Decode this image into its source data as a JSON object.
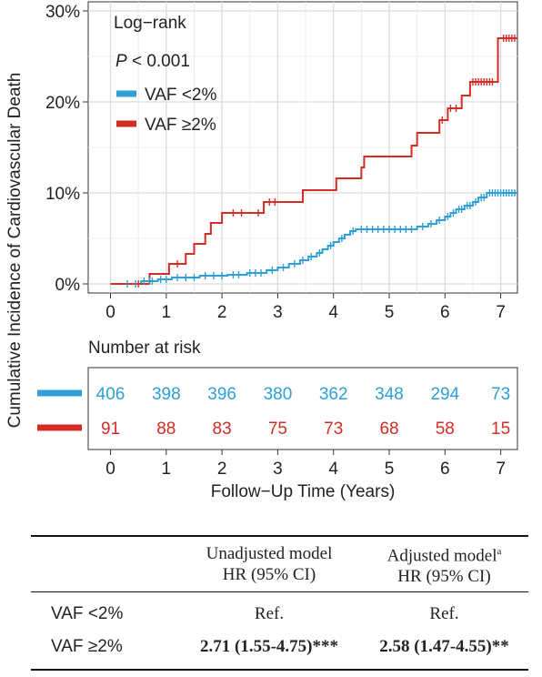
{
  "chart_data": {
    "type": "line",
    "subtype": "cumulative-incidence",
    "ylabel": "Cumulative Incidence of Cardiovascular Death",
    "xlabel": "Follow−Up Time (Years)",
    "x_ticks": [
      0,
      1,
      2,
      3,
      4,
      5,
      6,
      7
    ],
    "y_ticks": [
      0,
      10,
      20,
      30
    ],
    "y_tick_labels": [
      "0%",
      "10%",
      "20%",
      "30%"
    ],
    "xlim": [
      -0.4,
      7.3
    ],
    "ylim": [
      -1,
      31
    ],
    "grid": true,
    "legend": {
      "placement": "top-left",
      "test_label": "Log−rank",
      "p_symbol": "P",
      "p_rest": " < 0.001"
    },
    "series": [
      {
        "name": "VAF <2%",
        "color": "#2f9fd6",
        "steps": [
          [
            0,
            0
          ],
          [
            0.55,
            0.3
          ],
          [
            0.85,
            0.5
          ],
          [
            1.1,
            0.7
          ],
          [
            1.6,
            0.9
          ],
          [
            2.1,
            1.0
          ],
          [
            2.45,
            1.2
          ],
          [
            2.8,
            1.5
          ],
          [
            3.0,
            1.8
          ],
          [
            3.2,
            2.2
          ],
          [
            3.4,
            2.6
          ],
          [
            3.55,
            3.0
          ],
          [
            3.7,
            3.4
          ],
          [
            3.8,
            3.8
          ],
          [
            3.9,
            4.2
          ],
          [
            4.0,
            4.6
          ],
          [
            4.1,
            5.0
          ],
          [
            4.2,
            5.4
          ],
          [
            4.3,
            5.8
          ],
          [
            4.4,
            6.0
          ],
          [
            5.5,
            6.3
          ],
          [
            5.7,
            6.6
          ],
          [
            5.85,
            7.0
          ],
          [
            6.0,
            7.4
          ],
          [
            6.1,
            7.8
          ],
          [
            6.2,
            8.2
          ],
          [
            6.35,
            8.6
          ],
          [
            6.5,
            9.0
          ],
          [
            6.6,
            9.5
          ],
          [
            6.75,
            10.0
          ],
          [
            7.3,
            10.0
          ]
        ],
        "censor_x": [
          0.3,
          0.45,
          0.6,
          0.7,
          0.75,
          0.9,
          1.0,
          1.2,
          1.35,
          1.5,
          1.7,
          1.85,
          2.0,
          2.2,
          2.3,
          2.5,
          2.6,
          2.7,
          2.9,
          3.1,
          3.3,
          3.45,
          3.6,
          3.75,
          3.95,
          4.15,
          4.35,
          4.5,
          4.6,
          4.7,
          4.8,
          4.9,
          5.0,
          5.1,
          5.2,
          5.3,
          5.4,
          5.6,
          5.75,
          5.9,
          6.05,
          6.15,
          6.25,
          6.3,
          6.4,
          6.45,
          6.55,
          6.65,
          6.7,
          6.8,
          6.85,
          6.9,
          6.95,
          7.0,
          7.05,
          7.1,
          7.15,
          7.2,
          7.25
        ]
      },
      {
        "name": "VAF ≥2%",
        "color": "#d42d26",
        "steps": [
          [
            0,
            0
          ],
          [
            0.7,
            1.1
          ],
          [
            1.05,
            2.2
          ],
          [
            1.35,
            3.3
          ],
          [
            1.5,
            4.4
          ],
          [
            1.7,
            5.5
          ],
          [
            1.8,
            6.7
          ],
          [
            2.0,
            7.8
          ],
          [
            2.75,
            9.0
          ],
          [
            3.45,
            10.3
          ],
          [
            4.05,
            11.6
          ],
          [
            4.5,
            12.8
          ],
          [
            4.55,
            14.0
          ],
          [
            5.4,
            15.2
          ],
          [
            5.5,
            16.6
          ],
          [
            5.9,
            18.0
          ],
          [
            6.05,
            19.3
          ],
          [
            6.3,
            20.7
          ],
          [
            6.45,
            22.2
          ],
          [
            6.95,
            27.0
          ],
          [
            7.3,
            27.0
          ]
        ],
        "censor_x": [
          0.5,
          1.2,
          2.2,
          2.35,
          2.65,
          2.85,
          2.95,
          5.95,
          6.1,
          6.2,
          6.5,
          6.55,
          6.6,
          6.65,
          6.7,
          6.75,
          6.8,
          6.85,
          7.05,
          7.1,
          7.15,
          7.2,
          7.25
        ]
      }
    ]
  },
  "risk_table": {
    "title": "Number at risk",
    "times": [
      0,
      1,
      2,
      3,
      4,
      5,
      6,
      7
    ],
    "rows": [
      {
        "name": "VAF <2%",
        "color": "#2f9fd6",
        "values": [
          406,
          398,
          396,
          380,
          362,
          348,
          294,
          73
        ]
      },
      {
        "name": "VAF ≥2%",
        "color": "#d42d26",
        "values": [
          91,
          88,
          83,
          75,
          73,
          68,
          58,
          15
        ]
      }
    ]
  },
  "hr_table": {
    "headers": {
      "unadjusted_line1": "Unadjusted model",
      "unadjusted_line2": "HR (95% CI)",
      "adjusted_line1": "Adjusted model",
      "adjusted_sup": "a",
      "adjusted_line2": "HR (95% CI)"
    },
    "rows": [
      {
        "group": "VAF <2%",
        "unadjusted": "Ref.",
        "adjusted": "Ref."
      },
      {
        "group": "VAF ≥2%",
        "unadjusted": "2.71 (1.55-4.75)***",
        "adjusted": "2.58 (1.47-4.55)**"
      }
    ]
  }
}
